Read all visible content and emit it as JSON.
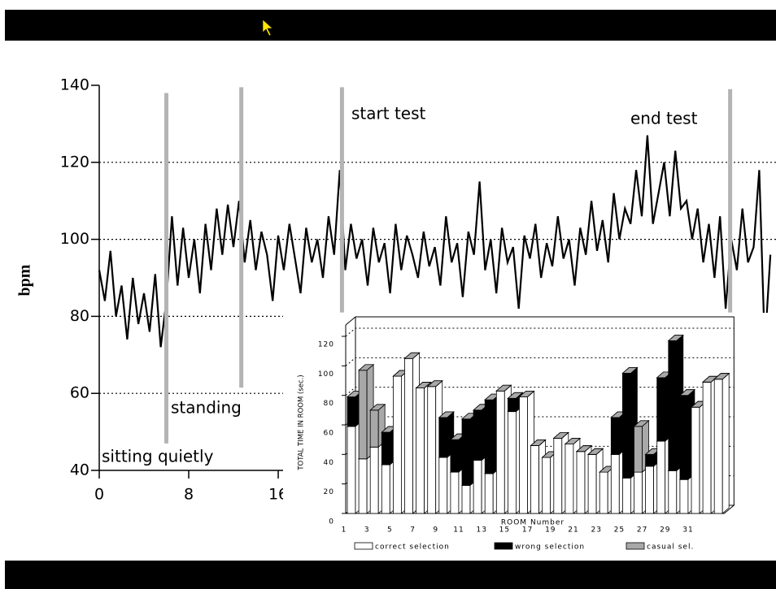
{
  "chart_data": [
    {
      "type": "line",
      "y_label": "bpm",
      "x": [
        0,
        0.5,
        1,
        1.5,
        2,
        2.5,
        3,
        3.5,
        4,
        4.5,
        5,
        5.5,
        6,
        6.5,
        7,
        7.5,
        8,
        8.5,
        9,
        9.5,
        10,
        10.5,
        11,
        11.5,
        12,
        12.5,
        13,
        13.5,
        14,
        14.5,
        15,
        15.5,
        16,
        16.5,
        17,
        17.5,
        18,
        18.5,
        19,
        19.5,
        20,
        20.5,
        21,
        21.5,
        22,
        22.5,
        23,
        23.5,
        24,
        24.5,
        25,
        25.5,
        26,
        26.5,
        27,
        27.5,
        28,
        28.5,
        29,
        29.5,
        30,
        30.5,
        31,
        31.5,
        32,
        32.5,
        33,
        33.5,
        34,
        34.5,
        35,
        35.5,
        36,
        36.5,
        37,
        37.5,
        38,
        38.5,
        39,
        39.5,
        40,
        40.5,
        41,
        41.5,
        42,
        42.5,
        43,
        43.5,
        44,
        44.5,
        45,
        45.5,
        46,
        46.5,
        47,
        47.5,
        48,
        48.5,
        49,
        49.5,
        50,
        50.5,
        51,
        51.5,
        52,
        52.5,
        53,
        53.5,
        54,
        54.5,
        55,
        55.5,
        56,
        56.5,
        57,
        57.5,
        58,
        58.5,
        59,
        59.5,
        60
      ],
      "values": [
        92,
        84,
        97,
        80,
        88,
        74,
        90,
        78,
        86,
        76,
        91,
        72,
        84,
        106,
        88,
        103,
        90,
        100,
        86,
        104,
        92,
        108,
        96,
        109,
        98,
        110,
        94,
        105,
        92,
        102,
        96,
        84,
        101,
        92,
        104,
        95,
        86,
        103,
        94,
        100,
        90,
        106,
        96,
        118,
        92,
        104,
        95,
        100,
        88,
        103,
        94,
        99,
        86,
        104,
        92,
        101,
        96,
        90,
        102,
        93,
        98,
        88,
        106,
        94,
        99,
        85,
        102,
        96,
        115,
        92,
        100,
        86,
        103,
        94,
        98,
        82,
        101,
        95,
        104,
        90,
        99,
        93,
        106,
        95,
        100,
        88,
        103,
        96,
        110,
        97,
        105,
        94,
        112,
        100,
        108,
        104,
        118,
        106,
        127,
        104,
        112,
        120,
        106,
        123,
        108,
        110,
        100,
        108,
        94,
        104,
        90,
        106,
        82,
        100,
        92,
        108,
        94,
        98,
        118,
        72,
        96
      ],
      "color": "#000000",
      "xlim": [
        0,
        60.5
      ],
      "xticks": [
        0,
        8,
        16
      ],
      "ylim": [
        40,
        140
      ],
      "yticks": [
        40,
        60,
        80,
        100,
        120,
        140
      ],
      "grid": true,
      "markers": [
        {
          "x": 6,
          "y": [
            47,
            138
          ]
        },
        {
          "x": 12.7,
          "y": [
            61.5,
            139.5
          ]
        },
        {
          "x": 21.7,
          "y": [
            81,
            139.5
          ]
        },
        {
          "x": 56.4,
          "y": [
            81,
            139
          ]
        }
      ],
      "marker_color": "#b4b4b4",
      "annotations": [
        "sitting quietly",
        "standing",
        "start test",
        "end test"
      ]
    },
    {
      "type": "bar3d",
      "stacked": true,
      "y_label": "TOTAL TIME IN ROOM (sec.)",
      "x_label": "ROOM Number",
      "categories": [
        1,
        null,
        3,
        null,
        5,
        null,
        7,
        null,
        9,
        null,
        11,
        null,
        13,
        null,
        15,
        null,
        17,
        null,
        19,
        null,
        21,
        null,
        23,
        null,
        25,
        null,
        27,
        null,
        29,
        null,
        31,
        null,
        null
      ],
      "series": [
        {
          "name": "correct selection",
          "color": "#ffffff",
          "values": [
            59,
            37,
            45,
            33,
            93,
            105,
            85,
            86,
            38,
            28,
            19,
            36,
            27,
            83,
            69,
            79,
            46,
            38,
            51,
            47,
            42,
            40,
            28,
            40,
            24,
            28,
            32,
            49,
            29,
            23,
            72,
            89,
            91
          ]
        },
        {
          "name": "wrong selection",
          "color": "#000000",
          "values": [
            20,
            0,
            0,
            22,
            0,
            0,
            0,
            0,
            27,
            22,
            45,
            34,
            50,
            0,
            9,
            0,
            0,
            0,
            0,
            0,
            0,
            0,
            0,
            25,
            71,
            0,
            8,
            43,
            88,
            57,
            0,
            0,
            0
          ]
        },
        {
          "name": "casual sel.",
          "color": "#a8a8a8",
          "values": [
            0,
            60,
            25,
            0,
            0,
            0,
            0,
            0,
            0,
            0,
            0,
            0,
            0,
            0,
            0,
            0,
            0,
            0,
            0,
            0,
            0,
            0,
            0,
            0,
            0,
            31,
            0,
            0,
            0,
            0,
            0,
            0,
            0
          ]
        }
      ],
      "ylim": [
        0,
        120
      ],
      "yticks": [
        0,
        20,
        40,
        60,
        80,
        100,
        120
      ],
      "grid": true
    }
  ]
}
